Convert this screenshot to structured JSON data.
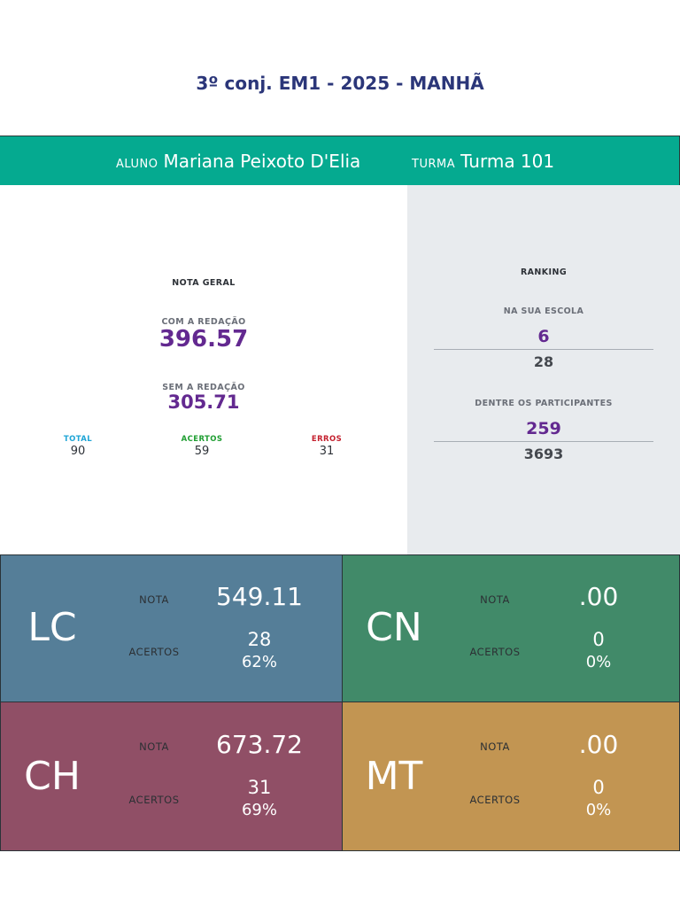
{
  "header": {
    "title": "3º conj. EM1 - 2025 - MANHÃ"
  },
  "student": {
    "aluno_label": "ALUNO",
    "aluno_name": "Mariana Peixoto D'Elia",
    "turma_label": "TURMA",
    "turma_name": "Turma 101"
  },
  "nota_geral": {
    "heading": "NOTA GERAL",
    "com_label": "COM A REDAÇÃO",
    "com_value": "396.57",
    "sem_label": "SEM A REDAÇÃO",
    "sem_value": "305.71",
    "total_label": "TOTAL",
    "total_value": "90",
    "acertos_label": "ACERTOS",
    "acertos_value": "59",
    "erros_label": "ERROS",
    "erros_value": "31",
    "colors": {
      "total": "#1fa5d6",
      "acertos": "#1f9e32",
      "erros": "#c4202e"
    }
  },
  "ranking": {
    "heading": "RANKING",
    "escola_label": "NA SUA ESCOLA",
    "escola_position": "6",
    "escola_total": "28",
    "participantes_label": "DENTRE OS PARTICIPANTES",
    "participantes_position": "259",
    "participantes_total": "3693"
  },
  "areas": [
    {
      "code": "LC",
      "nota_label": "NOTA",
      "nota": "549.11",
      "acertos_label": "ACERTOS",
      "acertos": "28",
      "percent": "62%",
      "color": "#557e98"
    },
    {
      "code": "CN",
      "nota_label": "NOTA",
      "nota": ".00",
      "acertos_label": "ACERTOS",
      "acertos": "0",
      "percent": "0%",
      "color": "#418a69"
    },
    {
      "code": "CH",
      "nota_label": "NOTA",
      "nota": "673.72",
      "acertos_label": "ACERTOS",
      "acertos": "31",
      "percent": "69%",
      "color": "#904f66"
    },
    {
      "code": "MT",
      "nota_label": "NOTA",
      "nota": ".00",
      "acertos_label": "ACERTOS",
      "acertos": "0",
      "percent": "0%",
      "color": "#c29552"
    }
  ]
}
